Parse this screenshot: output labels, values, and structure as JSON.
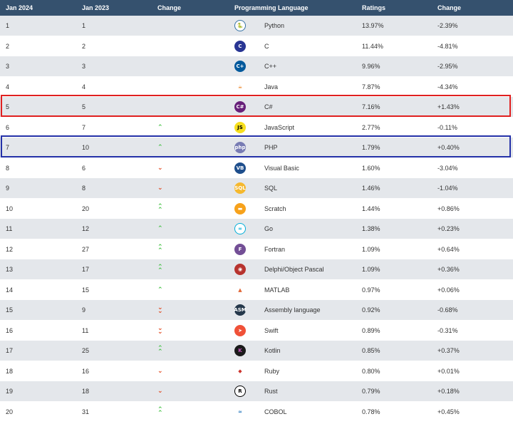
{
  "table": {
    "headers": {
      "jan2024": "Jan 2024",
      "jan2023": "Jan 2023",
      "change": "Change",
      "language": "Programming Language",
      "ratings": "Ratings",
      "ratings_change": "Change"
    },
    "rows": [
      {
        "jan2024": "1",
        "jan2023": "1",
        "trend": "",
        "language": "Python",
        "icon": "python-icon",
        "ratings": "13.97%",
        "change": "-2.39%"
      },
      {
        "jan2024": "2",
        "jan2023": "2",
        "trend": "",
        "language": "C",
        "icon": "c-icon",
        "ratings": "11.44%",
        "change": "-4.81%"
      },
      {
        "jan2024": "3",
        "jan2023": "3",
        "trend": "",
        "language": "C++",
        "icon": "cpp-icon",
        "ratings": "9.96%",
        "change": "-2.95%"
      },
      {
        "jan2024": "4",
        "jan2023": "4",
        "trend": "",
        "language": "Java",
        "icon": "java-icon",
        "ratings": "7.87%",
        "change": "-4.34%"
      },
      {
        "jan2024": "5",
        "jan2023": "5",
        "trend": "",
        "language": "C#",
        "icon": "csharp-icon",
        "ratings": "7.16%",
        "change": "+1.43%"
      },
      {
        "jan2024": "6",
        "jan2023": "7",
        "trend": "up",
        "language": "JavaScript",
        "icon": "javascript-icon",
        "ratings": "2.77%",
        "change": "-0.11%"
      },
      {
        "jan2024": "7",
        "jan2023": "10",
        "trend": "up",
        "language": "PHP",
        "icon": "php-icon",
        "ratings": "1.79%",
        "change": "+0.40%"
      },
      {
        "jan2024": "8",
        "jan2023": "6",
        "trend": "down",
        "language": "Visual Basic",
        "icon": "visual-basic-icon",
        "ratings": "1.60%",
        "change": "-3.04%"
      },
      {
        "jan2024": "9",
        "jan2023": "8",
        "trend": "down",
        "language": "SQL",
        "icon": "sql-icon",
        "ratings": "1.46%",
        "change": "-1.04%"
      },
      {
        "jan2024": "10",
        "jan2023": "20",
        "trend": "up2",
        "language": "Scratch",
        "icon": "scratch-icon",
        "ratings": "1.44%",
        "change": "+0.86%"
      },
      {
        "jan2024": "11",
        "jan2023": "12",
        "trend": "up",
        "language": "Go",
        "icon": "go-icon",
        "ratings": "1.38%",
        "change": "+0.23%"
      },
      {
        "jan2024": "12",
        "jan2023": "27",
        "trend": "up2",
        "language": "Fortran",
        "icon": "fortran-icon",
        "ratings": "1.09%",
        "change": "+0.64%"
      },
      {
        "jan2024": "13",
        "jan2023": "17",
        "trend": "up2",
        "language": "Delphi/Object Pascal",
        "icon": "delphi-icon",
        "ratings": "1.09%",
        "change": "+0.36%"
      },
      {
        "jan2024": "14",
        "jan2023": "15",
        "trend": "up",
        "language": "MATLAB",
        "icon": "matlab-icon",
        "ratings": "0.97%",
        "change": "+0.06%"
      },
      {
        "jan2024": "15",
        "jan2023": "9",
        "trend": "down2",
        "language": "Assembly language",
        "icon": "assembly-icon",
        "ratings": "0.92%",
        "change": "-0.68%"
      },
      {
        "jan2024": "16",
        "jan2023": "11",
        "trend": "down2",
        "language": "Swift",
        "icon": "swift-icon",
        "ratings": "0.89%",
        "change": "-0.31%"
      },
      {
        "jan2024": "17",
        "jan2023": "25",
        "trend": "up2",
        "language": "Kotlin",
        "icon": "kotlin-icon",
        "ratings": "0.85%",
        "change": "+0.37%"
      },
      {
        "jan2024": "18",
        "jan2023": "16",
        "trend": "down",
        "language": "Ruby",
        "icon": "ruby-icon",
        "ratings": "0.80%",
        "change": "+0.01%"
      },
      {
        "jan2024": "19",
        "jan2023": "18",
        "trend": "down",
        "language": "Rust",
        "icon": "rust-icon",
        "ratings": "0.79%",
        "change": "+0.18%"
      },
      {
        "jan2024": "20",
        "jan2023": "31",
        "trend": "up2",
        "language": "COBOL",
        "icon": "cobol-icon",
        "ratings": "0.78%",
        "change": "+0.45%"
      }
    ]
  },
  "highlights": {
    "red_row": "C#",
    "blue_row": "PHP"
  },
  "icon_labels": {
    "javascript": "JS",
    "php": "php",
    "visual_basic": "VB",
    "sql": "SQL",
    "fortran": "F",
    "assembly": "ASM"
  },
  "colors": {
    "header_bg": "#35516e",
    "row_odd": "#e4e7eb",
    "up": "#3fbf3f",
    "down": "#e0461c",
    "highlight_red": "#e02020",
    "highlight_blue": "#2431a8"
  }
}
